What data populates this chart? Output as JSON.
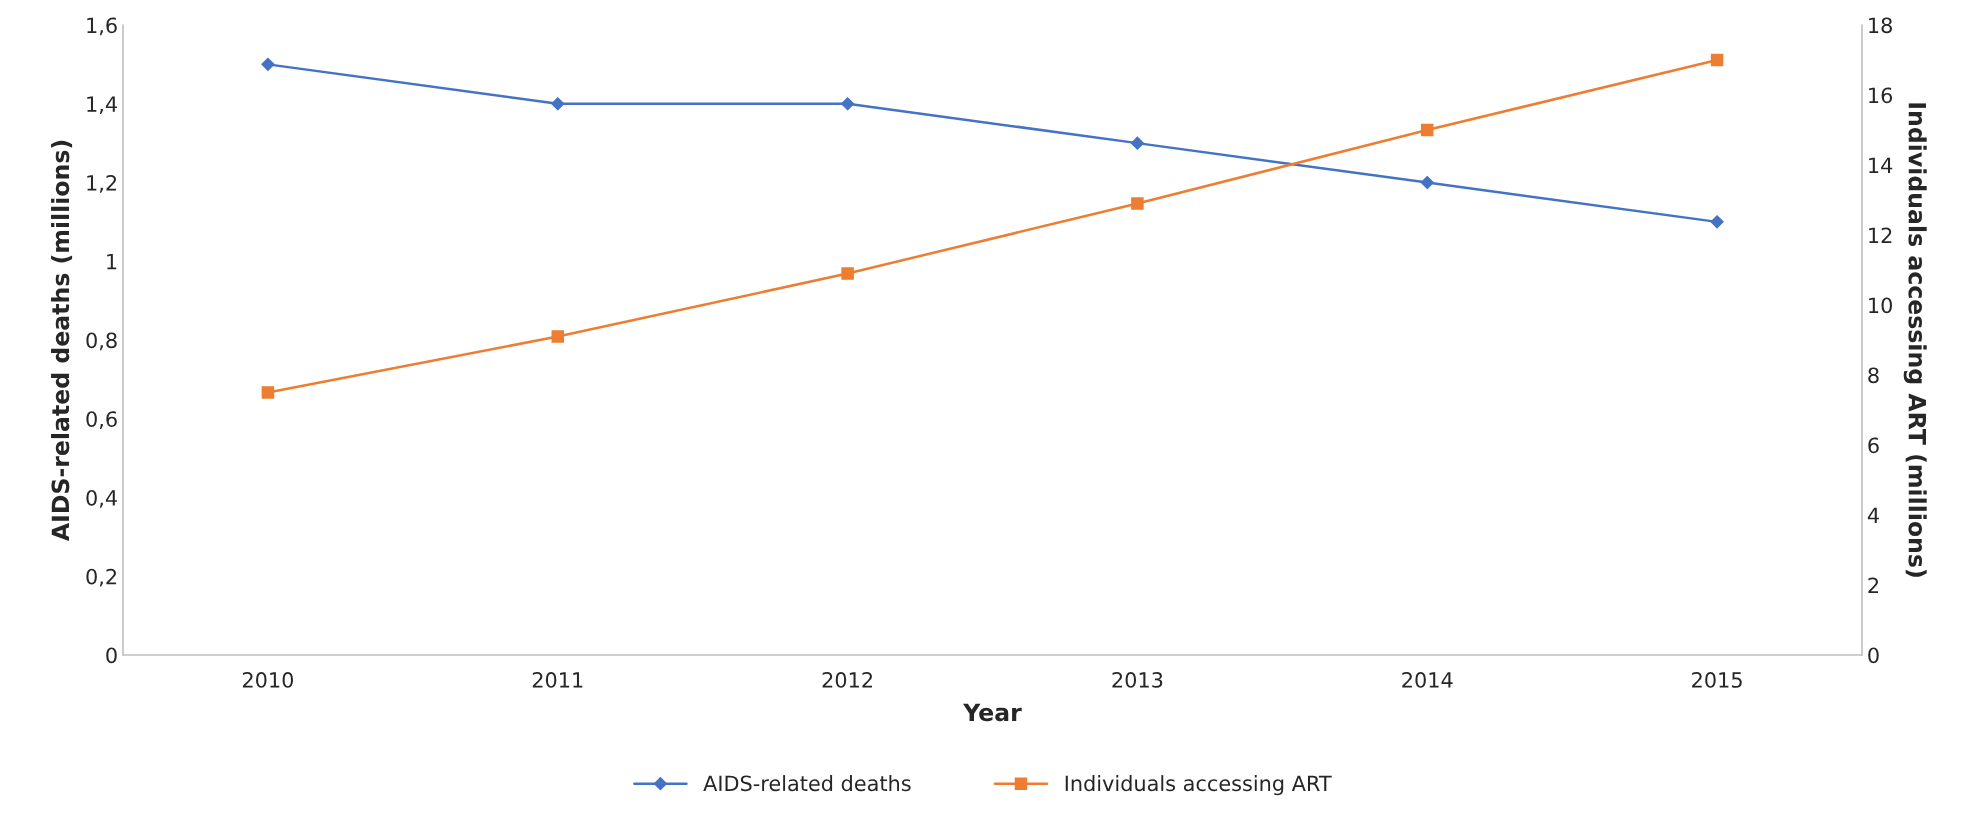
{
  "chart_data": {
    "type": "line",
    "xlabel": "Year",
    "ylabel": "AIDS-related deaths (millions)",
    "y2label": "Individuals accessing ART (millions)",
    "categories": [
      "2010",
      "2011",
      "2012",
      "2013",
      "2014",
      "2015"
    ],
    "series": [
      {
        "name": "AIDS-related deaths",
        "color": "#4472c4",
        "marker": "diamond",
        "values": [
          1.5,
          1.4,
          1.4,
          1.3,
          1.2,
          1.1
        ]
      },
      {
        "name": "Individuals accessing ART",
        "color": "#ed7d31",
        "marker": "square",
        "axis": "y2",
        "values": [
          7.5,
          9.1,
          10.9,
          12.9,
          15.0,
          17.0
        ]
      }
    ],
    "ylim": [
      0,
      1.6
    ],
    "yticks": [
      0,
      {
        "value": 0.2,
        "label": "0,2"
      },
      {
        "value": 0.4,
        "label": "0,4"
      },
      {
        "value": 0.6,
        "label": "0,6"
      },
      {
        "value": 0.8,
        "label": "0,8"
      },
      1,
      {
        "value": 1.2,
        "label": "1,2"
      },
      {
        "value": 1.4,
        "label": "1,4"
      },
      {
        "value": 1.6,
        "label": "1,6"
      }
    ],
    "y2lim": [
      0,
      18
    ],
    "y2ticks": [
      0,
      2,
      4,
      6,
      8,
      10,
      12,
      14,
      16,
      18
    ],
    "grid": false,
    "legend": "bottom",
    "line_style": "solid"
  }
}
